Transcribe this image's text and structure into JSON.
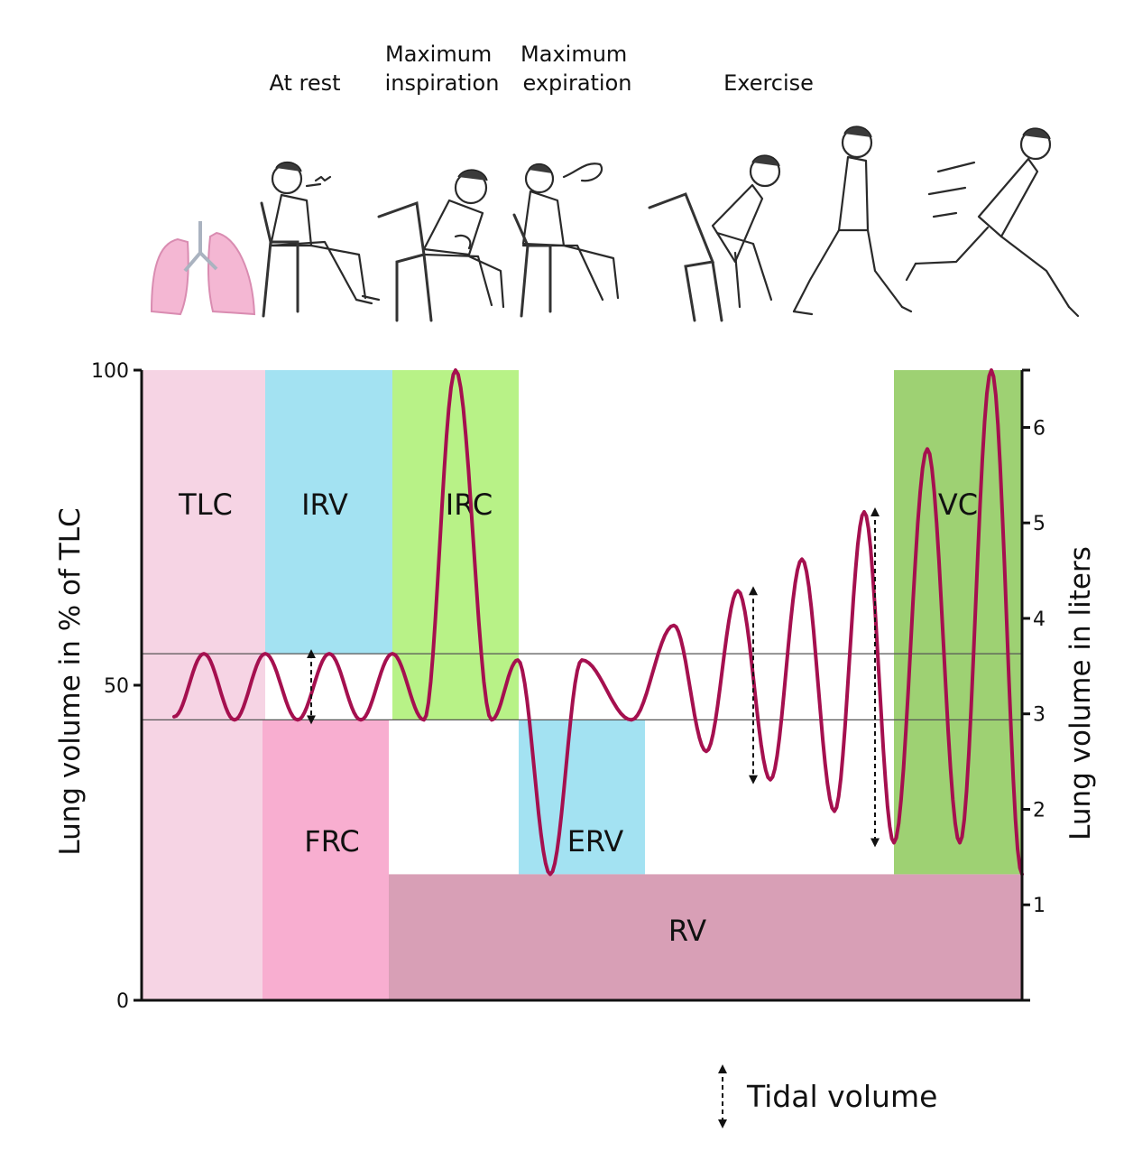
{
  "situations": [
    {
      "lines": [
        "At rest"
      ]
    },
    {
      "lines": [
        "Maximum",
        "inspiration"
      ]
    },
    {
      "lines": [
        "Maximum",
        "expiration"
      ]
    },
    {
      "lines": [
        "Exercise"
      ]
    }
  ],
  "chart_data": {
    "type": "line",
    "left_axis": {
      "title": "Lung volume in % of TLC",
      "ylim": [
        0,
        100
      ],
      "ticks": [
        "0",
        "50",
        "100"
      ]
    },
    "right_axis": {
      "title": "Lung volume in liters",
      "ylim": [
        0,
        6.6
      ],
      "ticks": [
        "1",
        "2",
        "3",
        "4",
        "5",
        "6"
      ]
    },
    "reference_lines_percent": [
      44.5,
      55
    ],
    "regions": [
      {
        "label": "TLC",
        "y_range_percent": [
          0,
          100
        ],
        "color": "#f6d4e4"
      },
      {
        "label": "IRV",
        "y_range_percent": [
          55,
          100
        ],
        "color": "#a3e2f2"
      },
      {
        "label": "IRC",
        "y_range_percent": [
          44.5,
          100
        ],
        "color": "#b8f287"
      },
      {
        "label": "FRC",
        "y_range_percent": [
          0,
          44.5
        ],
        "color": "#f8aed0"
      },
      {
        "label": "ERV",
        "y_range_percent": [
          20,
          44.5
        ],
        "color": "#a3e2f2"
      },
      {
        "label": "RV",
        "y_range_percent": [
          0,
          20
        ],
        "color": "#d89fb6"
      },
      {
        "label": "VC",
        "y_range_percent": [
          20,
          100
        ],
        "color": "#9ed173"
      }
    ],
    "series": [
      {
        "color": "#a5104f",
        "peaks_troughs_percent": [
          45,
          55,
          44.5,
          55,
          44.5,
          55,
          44.5,
          55,
          44.5,
          100,
          44.5,
          54,
          20,
          54,
          44.5,
          59.5,
          39.5,
          65,
          35,
          70,
          30,
          77.5,
          25,
          87.5,
          25,
          100,
          20
        ]
      }
    ],
    "legend": {
      "label": "Tidal volume",
      "placement": "bottom-right"
    }
  }
}
